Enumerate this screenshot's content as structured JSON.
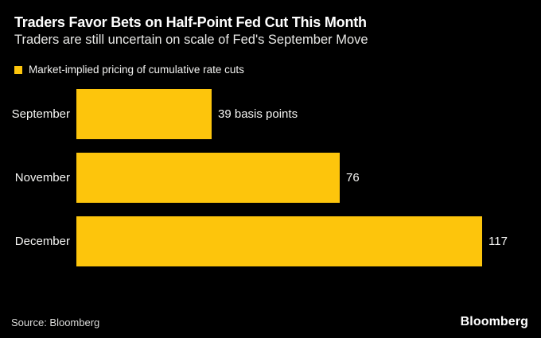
{
  "header": {
    "title": "Traders Favor Bets on Half-Point Fed Cut This Month",
    "subtitle": "Traders are still uncertain on scale of Fed's September Move"
  },
  "legend": {
    "label": "Market-implied pricing of cumulative rate cuts",
    "swatch_color": "#fdc50c"
  },
  "chart_data": {
    "type": "bar",
    "orientation": "horizontal",
    "title": "Traders Favor Bets on Half-Point Fed Cut This Month",
    "subtitle": "Traders are still uncertain on scale of Fed's September Move",
    "legend_entries": [
      "Market-implied pricing of cumulative rate cuts"
    ],
    "categories": [
      "September",
      "November",
      "December"
    ],
    "values": [
      39,
      76,
      117
    ],
    "value_labels": [
      "39 basis points",
      "76",
      "117"
    ],
    "unit": "basis points",
    "xlim": [
      0,
      120
    ],
    "grid": false,
    "legend_position": "top-left",
    "bar_color": "#fdc50c",
    "background_color": "#000000"
  },
  "footer": {
    "source": "Source: Bloomberg",
    "brand": "Bloomberg"
  }
}
